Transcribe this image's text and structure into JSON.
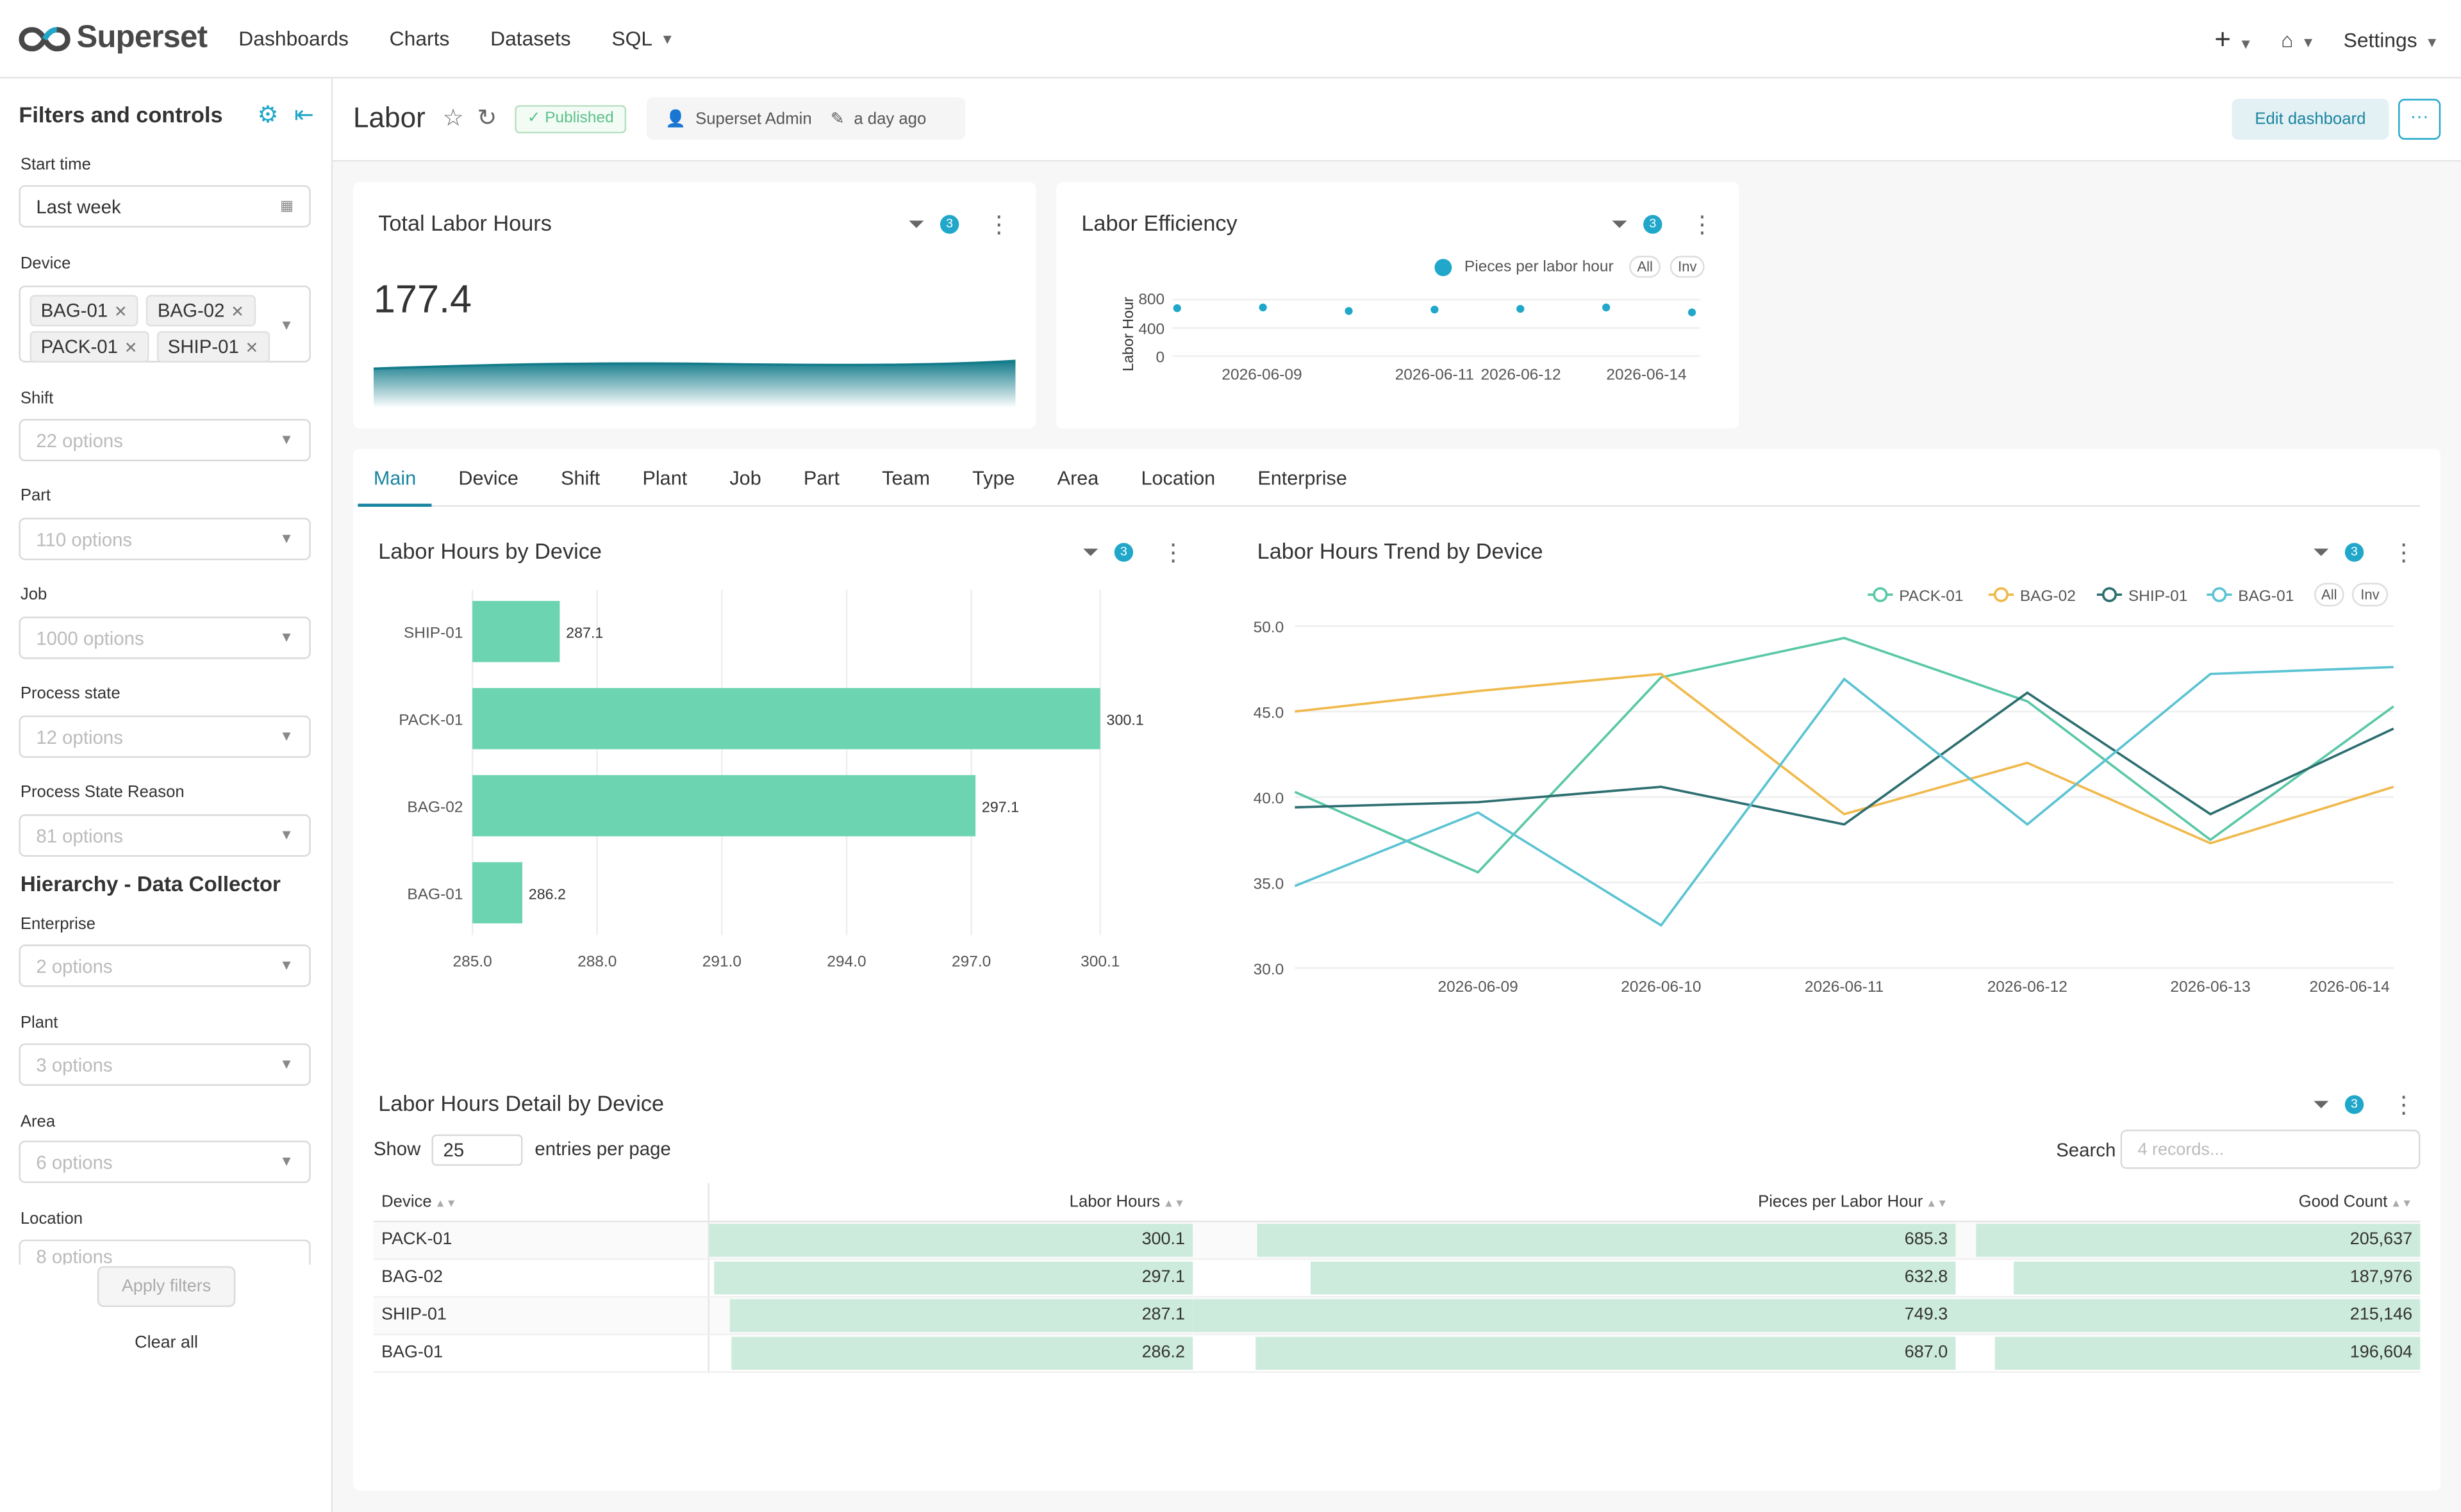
{
  "app": {
    "brand": "Superset",
    "nav": [
      {
        "label": "Dashboards"
      },
      {
        "label": "Charts"
      },
      {
        "label": "Datasets"
      },
      {
        "label": "SQL"
      }
    ],
    "right": {
      "plus": "+",
      "settings": "Settings"
    }
  },
  "sidebar": {
    "title": "Filters and controls",
    "filters": {
      "start_time": {
        "label": "Start time",
        "value": "Last week"
      },
      "device": {
        "label": "Device",
        "tags": [
          "BAG-01",
          "BAG-02",
          "PACK-01",
          "SHIP-01"
        ]
      },
      "shift": {
        "label": "Shift",
        "placeholder": "22 options"
      },
      "part": {
        "label": "Part",
        "placeholder": "110 options"
      },
      "job": {
        "label": "Job",
        "placeholder": "1000 options"
      },
      "process_state": {
        "label": "Process state",
        "placeholder": "12 options"
      },
      "process_state_reason": {
        "label": "Process State Reason",
        "placeholder": "81 options"
      },
      "hierarchy_title": "Hierarchy - Data Collector",
      "enterprise": {
        "label": "Enterprise",
        "placeholder": "2 options"
      },
      "plant": {
        "label": "Plant",
        "placeholder": "3 options"
      },
      "area": {
        "label": "Area",
        "placeholder": "6 options"
      },
      "location": {
        "label": "Location",
        "placeholder": "8 options"
      }
    },
    "apply": "Apply filters",
    "clear": "Clear all"
  },
  "dashboard": {
    "title": "Labor",
    "status": "Published",
    "owner": "Superset Admin",
    "modified": "a day ago",
    "edit": "Edit dashboard",
    "more": "···"
  },
  "cards": {
    "total_labor": {
      "title": "Total Labor Hours",
      "value": "177.4",
      "filter_count": "3"
    },
    "efficiency": {
      "title": "Labor Efficiency",
      "filter_count": "3",
      "legend": "Pieces per labor hour",
      "all": "All",
      "inv": "Inv",
      "ylabel": "Labor Hour",
      "y_ticks": [
        "800",
        "400",
        "0"
      ],
      "x_ticks": [
        "2026-06-09",
        "2026-06-11",
        "2026-06-12",
        "2026-06-14"
      ]
    }
  },
  "tabs": [
    "Main",
    "Device",
    "Shift",
    "Plant",
    "Job",
    "Part",
    "Team",
    "Type",
    "Area",
    "Location",
    "Enterprise"
  ],
  "charts": {
    "by_device": {
      "title": "Labor Hours by Device",
      "filter_count": "3"
    },
    "trend": {
      "title": "Labor Hours Trend by Device",
      "filter_count": "3",
      "all": "All",
      "inv": "Inv"
    },
    "detail": {
      "title": "Labor Hours Detail by Device",
      "filter_count": "3",
      "show": "Show",
      "entries_value": "25",
      "entries_suffix": "entries per page",
      "search_label": "Search",
      "search_placeholder": "4 records...",
      "columns": [
        "Device",
        "Labor Hours",
        "Pieces per Labor Hour",
        "Good Count"
      ],
      "rows": [
        {
          "device": "PACK-01",
          "labor": "300.1",
          "ppl": "685.3",
          "good": "205,637"
        },
        {
          "device": "BAG-02",
          "labor": "297.1",
          "ppl": "632.8",
          "good": "187,976"
        },
        {
          "device": "SHIP-01",
          "labor": "287.1",
          "ppl": "749.3",
          "good": "215,146"
        },
        {
          "device": "BAG-01",
          "labor": "286.2",
          "ppl": "687.0",
          "good": "196,604"
        }
      ],
      "bar_fractions": {
        "labor": [
          1.0,
          0.99,
          0.957,
          0.954
        ],
        "ppl": [
          0.915,
          0.845,
          1.0,
          0.917
        ],
        "good": [
          0.956,
          0.874,
          1.0,
          0.914
        ]
      }
    }
  },
  "colors": {
    "accent": "#20a7c9",
    "bar": "#6cd4b0",
    "pack01": "#5ac8a7",
    "bag02": "#f0b94c",
    "ship01": "#2d6e70",
    "bag01": "#5bc3d3"
  },
  "chart_data": [
    {
      "type": "area",
      "title": "Total Labor Hours",
      "value": 177.4
    },
    {
      "type": "scatter",
      "title": "Labor Efficiency",
      "ylabel": "Labor Hour",
      "ylim": [
        0,
        800
      ],
      "x": [
        "2026-06-08",
        "2026-06-09",
        "2026-06-10",
        "2026-06-11",
        "2026-06-12",
        "2026-06-13",
        "2026-06-14"
      ],
      "series": [
        {
          "name": "Pieces per labor hour",
          "values": [
            680,
            690,
            640,
            660,
            670,
            690,
            620
          ]
        }
      ]
    },
    {
      "type": "bar",
      "title": "Labor Hours by Device",
      "orientation": "horizontal",
      "categories": [
        "SHIP-01",
        "PACK-01",
        "BAG-02",
        "BAG-01"
      ],
      "values": [
        287.1,
        300.1,
        297.1,
        286.2
      ],
      "xlim": [
        285.0,
        300.1
      ],
      "x_ticks": [
        "285.0",
        "288.0",
        "291.0",
        "294.0",
        "297.0",
        "300.1"
      ]
    },
    {
      "type": "line",
      "title": "Labor Hours Trend by Device",
      "ylim": [
        30.0,
        50.0
      ],
      "y_ticks": [
        "50.0",
        "45.0",
        "40.0",
        "35.0",
        "30.0"
      ],
      "x": [
        "2026-06-08",
        "2026-06-09",
        "2026-06-10",
        "2026-06-11",
        "2026-06-12",
        "2026-06-13",
        "2026-06-14"
      ],
      "x_ticks": [
        "2026-06-09",
        "2026-06-10",
        "2026-06-11",
        "2026-06-12",
        "2026-06-13",
        "2026-06-14"
      ],
      "series": [
        {
          "name": "PACK-01",
          "values": [
            40.3,
            35.6,
            47.0,
            49.3,
            45.6,
            37.5,
            45.3
          ]
        },
        {
          "name": "BAG-02",
          "values": [
            45.0,
            46.2,
            47.2,
            39.0,
            42.0,
            37.3,
            40.6
          ]
        },
        {
          "name": "SHIP-01",
          "values": [
            39.4,
            39.7,
            40.6,
            38.4,
            46.1,
            39.0,
            44.0
          ]
        },
        {
          "name": "BAG-01",
          "values": [
            34.8,
            39.1,
            32.5,
            46.9,
            38.4,
            47.2,
            47.6
          ]
        }
      ]
    }
  ]
}
